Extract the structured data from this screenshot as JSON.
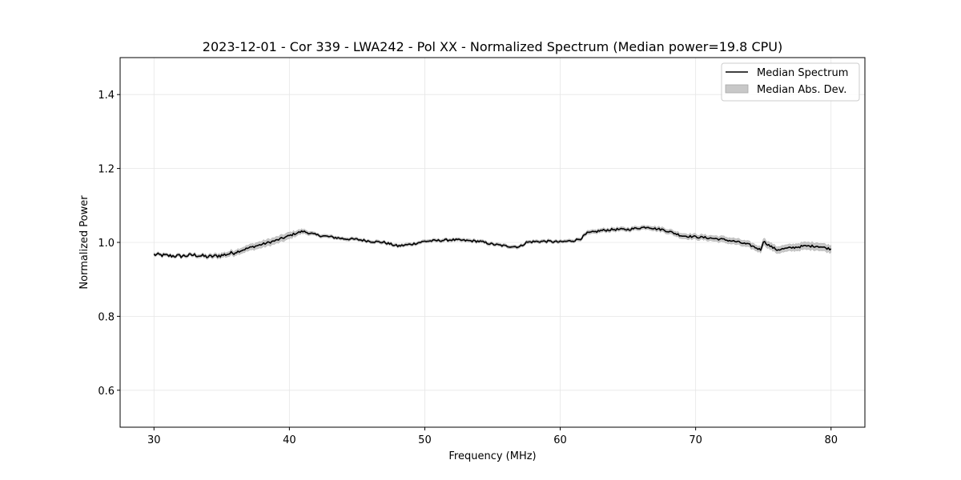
{
  "chart_data": {
    "type": "line",
    "title": "2023-12-01 - Cor 339 - LWA242 - Pol XX - Normalized Spectrum (Median power=19.8 CPU)",
    "xlabel": "Frequency (MHz)",
    "ylabel": "Normalized Power",
    "xlim": [
      27.5,
      82.5
    ],
    "ylim": [
      0.5,
      1.5
    ],
    "xticks": [
      30,
      40,
      50,
      60,
      70,
      80
    ],
    "xtick_labels": [
      "30",
      "40",
      "50",
      "60",
      "70",
      "80"
    ],
    "yticks": [
      0.6,
      0.8,
      1.0,
      1.2,
      1.4
    ],
    "ytick_labels": [
      "0.6",
      "0.8",
      "1.0",
      "1.2",
      "1.4"
    ],
    "grid": true,
    "legend_position": "top-right",
    "series": [
      {
        "name": "Median Spectrum",
        "kind": "line",
        "color": "#000000",
        "x": [
          30,
          31,
          32,
          33,
          34,
          35,
          36,
          37,
          38,
          39,
          40,
          40.5,
          41,
          41.5,
          42,
          43,
          44,
          45,
          46,
          47,
          48,
          49,
          50,
          51,
          52,
          53,
          54,
          55,
          56,
          57,
          57.5,
          58,
          59,
          60,
          61,
          61.5,
          62,
          62.5,
          63,
          64,
          65,
          66,
          66.5,
          67,
          67.5,
          68,
          69,
          70,
          71,
          72,
          73,
          74,
          74.8,
          75,
          75.5,
          76,
          77,
          78,
          79,
          80
        ],
        "values": [
          0.967,
          0.964,
          0.963,
          0.966,
          0.961,
          0.965,
          0.973,
          0.985,
          0.995,
          1.005,
          1.018,
          1.025,
          1.03,
          1.025,
          1.02,
          1.015,
          1.01,
          1.008,
          1.003,
          1.0,
          0.99,
          0.995,
          1.003,
          1.005,
          1.007,
          1.005,
          1.003,
          0.995,
          0.99,
          0.988,
          1.0,
          1.002,
          1.003,
          1.001,
          1.005,
          1.01,
          1.025,
          1.028,
          1.032,
          1.035,
          1.035,
          1.04,
          1.042,
          1.037,
          1.035,
          1.03,
          1.018,
          1.015,
          1.012,
          1.008,
          1.002,
          0.993,
          0.98,
          1.003,
          0.99,
          0.98,
          0.985,
          0.99,
          0.99,
          0.982
        ]
      },
      {
        "name": "Median Abs. Dev.",
        "kind": "band",
        "color": "#c8c8c8",
        "x": [
          30,
          31,
          32,
          33,
          34,
          35,
          36,
          37,
          38,
          39,
          40,
          40.5,
          41,
          41.5,
          42,
          43,
          44,
          45,
          46,
          47,
          48,
          49,
          50,
          51,
          52,
          53,
          54,
          55,
          56,
          57,
          57.5,
          58,
          59,
          60,
          61,
          61.5,
          62,
          62.5,
          63,
          64,
          65,
          66,
          66.5,
          67,
          67.5,
          68,
          69,
          70,
          71,
          72,
          73,
          74,
          74.8,
          75,
          75.5,
          76,
          77,
          78,
          79,
          80
        ],
        "dev": [
          0.004,
          0.004,
          0.004,
          0.004,
          0.005,
          0.006,
          0.007,
          0.008,
          0.009,
          0.009,
          0.009,
          0.007,
          0.006,
          0.005,
          0.004,
          0.004,
          0.004,
          0.004,
          0.004,
          0.004,
          0.004,
          0.004,
          0.004,
          0.004,
          0.004,
          0.004,
          0.004,
          0.004,
          0.004,
          0.004,
          0.004,
          0.004,
          0.004,
          0.004,
          0.004,
          0.004,
          0.005,
          0.005,
          0.005,
          0.005,
          0.005,
          0.005,
          0.005,
          0.006,
          0.006,
          0.006,
          0.007,
          0.007,
          0.007,
          0.008,
          0.008,
          0.008,
          0.008,
          0.009,
          0.009,
          0.009,
          0.009,
          0.01,
          0.01,
          0.01
        ]
      }
    ]
  }
}
